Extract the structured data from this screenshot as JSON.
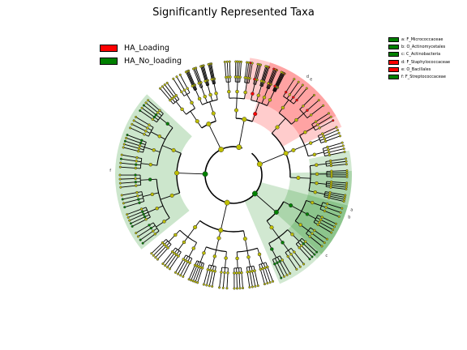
{
  "title": "Significantly Represented Taxa",
  "groups": [
    {
      "name": "HA_Loading",
      "color": "#ff0000"
    },
    {
      "name": "HA_No_loading",
      "color": "#008000"
    }
  ],
  "clades": [
    {
      "label": "a: F_Micrococcaceae",
      "group": 1,
      "letter": "a",
      "start": 315,
      "end": 372
    },
    {
      "label": "b: O_Actinomycetales",
      "group": 1,
      "letter": "b",
      "start": 318,
      "end": 362
    },
    {
      "label": "c: C_Actinobacteria",
      "group": 1,
      "letter": "c",
      "start": 293,
      "end": 345
    },
    {
      "label": "d: F_Staphylococcaceae",
      "group": 0,
      "letter": "d",
      "start": 24,
      "end": 82
    },
    {
      "label": "e: O_Bacillales",
      "group": 0,
      "letter": "e",
      "start": 30,
      "end": 72
    },
    {
      "label": "f: F_Streptococcaceae",
      "group": 1,
      "letter": "f",
      "start": 137,
      "end": 219
    }
  ]
}
